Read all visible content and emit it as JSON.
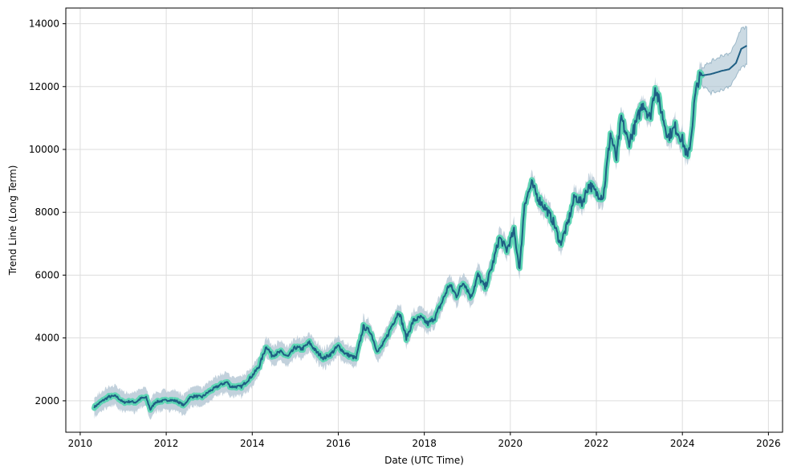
{
  "chart_data": {
    "type": "line",
    "title": "",
    "xlabel": "Date (UTC Time)",
    "ylabel": "Trend Line (Long Term)",
    "xlim": [
      "2009-09-01",
      "2026-05-01"
    ],
    "ylim": [
      1000,
      14500
    ],
    "grid": true,
    "x_ticks": [
      {
        "label": "2010",
        "date": "2010-01-01"
      },
      {
        "label": "2012",
        "date": "2012-01-01"
      },
      {
        "label": "2014",
        "date": "2014-01-01"
      },
      {
        "label": "2016",
        "date": "2016-01-01"
      },
      {
        "label": "2018",
        "date": "2018-01-01"
      },
      {
        "label": "2020",
        "date": "2020-01-01"
      },
      {
        "label": "2022",
        "date": "2022-01-01"
      },
      {
        "label": "2024",
        "date": "2024-01-01"
      },
      {
        "label": "2026",
        "date": "2026-01-01"
      }
    ],
    "y_ticks": [
      {
        "label": "2000",
        "value": 2000
      },
      {
        "label": "4000",
        "value": 4000
      },
      {
        "label": "6000",
        "value": 6000
      },
      {
        "label": "8000",
        "value": 8000
      },
      {
        "label": "10000",
        "value": 10000
      },
      {
        "label": "12000",
        "value": 12000
      },
      {
        "label": "14000",
        "value": 14000
      }
    ],
    "colors": {
      "history_highlight": "#5ed6b4",
      "history_band": "#b7c9d6",
      "trend_line": "#1f5f84",
      "forecast_band": "#a9c1d1",
      "grid": "#dddddd"
    },
    "series": [
      {
        "role": "historical",
        "band_width": 250,
        "points": [
          [
            "2010-05-01",
            1800
          ],
          [
            "2010-07-01",
            1980
          ],
          [
            "2010-09-01",
            2130
          ],
          [
            "2010-11-01",
            2150
          ],
          [
            "2011-01-01",
            1950
          ],
          [
            "2011-03-01",
            1980
          ],
          [
            "2011-04-15",
            1950
          ],
          [
            "2011-06-01",
            2080
          ],
          [
            "2011-07-15",
            2100
          ],
          [
            "2011-08-20",
            1720
          ],
          [
            "2011-10-01",
            1960
          ],
          [
            "2011-12-01",
            2000
          ],
          [
            "2012-02-01",
            2030
          ],
          [
            "2012-04-01",
            1990
          ],
          [
            "2012-06-01",
            1850
          ],
          [
            "2012-07-15",
            2100
          ],
          [
            "2012-09-01",
            2150
          ],
          [
            "2012-11-01",
            2120
          ],
          [
            "2013-01-01",
            2300
          ],
          [
            "2013-04-01",
            2500
          ],
          [
            "2013-06-01",
            2600
          ],
          [
            "2013-07-01",
            2450
          ],
          [
            "2013-10-01",
            2450
          ],
          [
            "2014-01-01",
            2800
          ],
          [
            "2014-03-01",
            3100
          ],
          [
            "2014-05-01",
            3750
          ],
          [
            "2014-06-15",
            3450
          ],
          [
            "2014-09-01",
            3550
          ],
          [
            "2014-11-01",
            3400
          ],
          [
            "2015-01-01",
            3700
          ],
          [
            "2015-03-01",
            3650
          ],
          [
            "2015-05-01",
            3850
          ],
          [
            "2015-07-01",
            3550
          ],
          [
            "2015-09-01",
            3350
          ],
          [
            "2015-11-01",
            3500
          ],
          [
            "2016-01-01",
            3750
          ],
          [
            "2016-03-01",
            3500
          ],
          [
            "2016-06-01",
            3350
          ],
          [
            "2016-08-01",
            4350
          ],
          [
            "2016-10-01",
            4200
          ],
          [
            "2016-12-01",
            3550
          ],
          [
            "2017-02-01",
            3900
          ],
          [
            "2017-04-01",
            4400
          ],
          [
            "2017-06-01",
            4850
          ],
          [
            "2017-08-01",
            4000
          ],
          [
            "2017-10-01",
            4550
          ],
          [
            "2017-12-01",
            4650
          ],
          [
            "2018-02-01",
            4450
          ],
          [
            "2018-04-01",
            4650
          ],
          [
            "2018-06-01",
            5150
          ],
          [
            "2018-08-01",
            5700
          ],
          [
            "2018-10-01",
            5350
          ],
          [
            "2018-12-01",
            5800
          ],
          [
            "2019-02-01",
            5300
          ],
          [
            "2019-04-01",
            6000
          ],
          [
            "2019-06-01",
            5600
          ],
          [
            "2019-08-01",
            6300
          ],
          [
            "2019-10-01",
            7200
          ],
          [
            "2019-12-01",
            6800
          ],
          [
            "2020-02-01",
            7400
          ],
          [
            "2020-03-20",
            6200
          ],
          [
            "2020-05-01",
            8300
          ],
          [
            "2020-07-01",
            8900
          ],
          [
            "2020-09-01",
            8400
          ],
          [
            "2020-11-01",
            8100
          ],
          [
            "2021-01-01",
            7700
          ],
          [
            "2021-03-01",
            7000
          ],
          [
            "2021-05-01",
            7600
          ],
          [
            "2021-07-01",
            8500
          ],
          [
            "2021-09-01",
            8300
          ],
          [
            "2021-11-01",
            8900
          ],
          [
            "2022-01-01",
            8600
          ],
          [
            "2022-03-01",
            8500
          ],
          [
            "2022-05-01",
            10500
          ],
          [
            "2022-06-20",
            9700
          ],
          [
            "2022-08-01",
            11000
          ],
          [
            "2022-10-01",
            10200
          ],
          [
            "2022-12-01",
            10800
          ],
          [
            "2023-02-01",
            11500
          ],
          [
            "2023-04-01",
            11000
          ],
          [
            "2023-05-15",
            12000
          ],
          [
            "2023-07-01",
            11300
          ],
          [
            "2023-09-01",
            10400
          ],
          [
            "2023-11-01",
            10700
          ],
          [
            "2024-01-01",
            10300
          ],
          [
            "2024-02-15",
            9700
          ],
          [
            "2024-03-15",
            10400
          ],
          [
            "2024-04-15",
            11600
          ],
          [
            "2024-05-15",
            12200
          ],
          [
            "2024-06-15",
            12350
          ]
        ]
      },
      {
        "role": "forecast",
        "points": [
          [
            "2024-06-15",
            12350,
            12050,
            12600
          ],
          [
            "2024-09-01",
            12400,
            11800,
            12800
          ],
          [
            "2024-12-01",
            12500,
            11900,
            13000
          ],
          [
            "2025-02-01",
            12550,
            12000,
            13050
          ],
          [
            "2025-04-01",
            12750,
            12300,
            13400
          ],
          [
            "2025-05-15",
            13200,
            12600,
            13850
          ],
          [
            "2025-07-01",
            13300,
            12700,
            13900
          ]
        ]
      }
    ]
  }
}
